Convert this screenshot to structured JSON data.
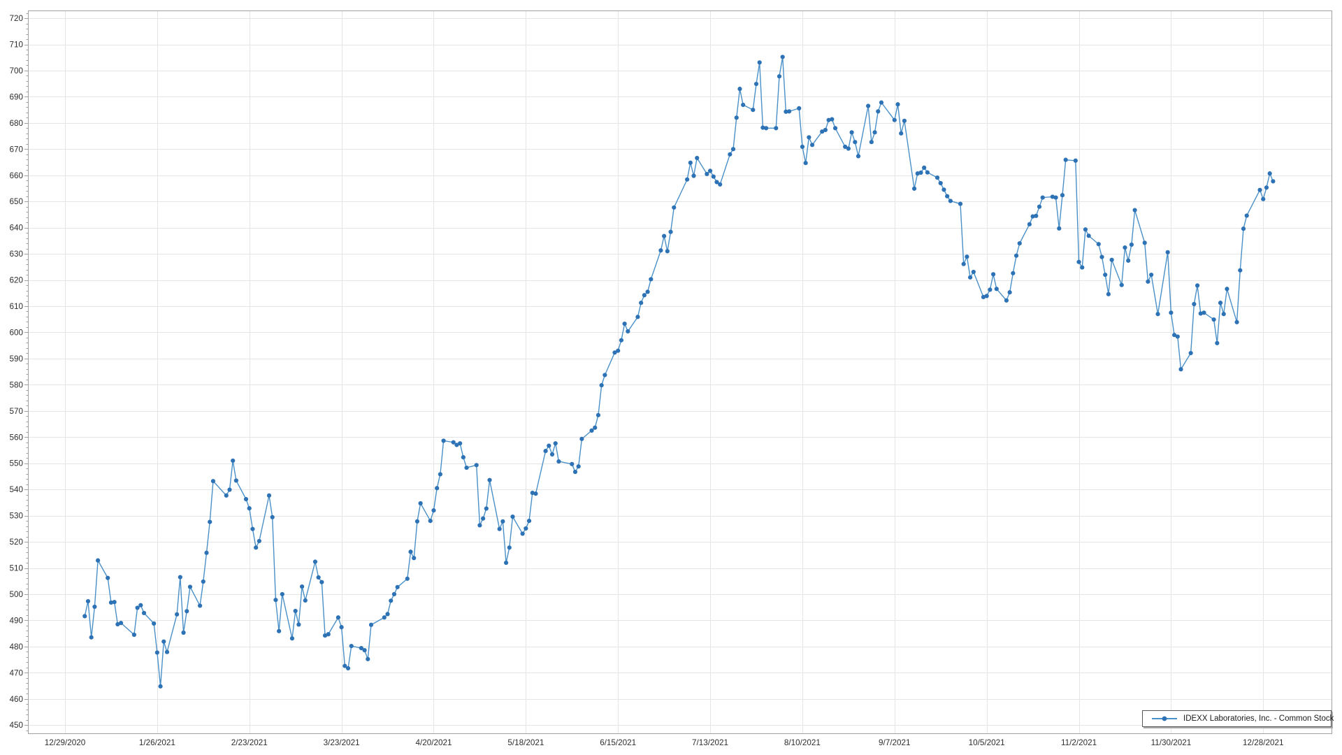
{
  "chart_data": {
    "type": "line",
    "title": "",
    "xlabel": "",
    "ylabel": "",
    "series_name": "IDEXX Laboratories, Inc. - Common Stock",
    "legend_position": "bottom-right",
    "grid": true,
    "colors": {
      "line": "#4a90c8",
      "marker": "#2d72b5",
      "gridline": "#e5e5e5",
      "axis": "#a0a0a0",
      "tick_label": "#2e2e2e",
      "background": "#ffffff"
    },
    "ylim": [
      446.8,
      723.0
    ],
    "y_tick_step": 10,
    "y_minor_tick_step": 2,
    "y_ticks": [
      450,
      460,
      470,
      480,
      490,
      500,
      510,
      520,
      530,
      540,
      550,
      560,
      570,
      580,
      590,
      600,
      610,
      620,
      630,
      640,
      650,
      660,
      670,
      680,
      690,
      700,
      710,
      720
    ],
    "x_tick_labels": [
      "12/29/2020",
      "1/26/2021",
      "2/23/2021",
      "3/23/2021",
      "4/20/2021",
      "5/18/2021",
      "6/15/2021",
      "7/13/2021",
      "8/10/2021",
      "9/7/2021",
      "10/5/2021",
      "11/2/2021",
      "11/30/2021",
      "12/28/2021"
    ],
    "x_tick_day_offsets": [
      0,
      28,
      56,
      84,
      112,
      140,
      168,
      196,
      224,
      252,
      280,
      308,
      336,
      364
    ],
    "x_day_range": [
      -11.3,
      384.8
    ],
    "dates": [
      "1/4/2021",
      "1/5/2021",
      "1/6/2021",
      "1/7/2021",
      "1/8/2021",
      "1/11/2021",
      "1/12/2021",
      "1/13/2021",
      "1/14/2021",
      "1/15/2021",
      "1/19/2021",
      "1/20/2021",
      "1/21/2021",
      "1/22/2021",
      "1/25/2021",
      "1/26/2021",
      "1/27/2021",
      "1/28/2021",
      "1/29/2021",
      "2/1/2021",
      "2/2/2021",
      "2/3/2021",
      "2/4/2021",
      "2/5/2021",
      "2/8/2021",
      "2/9/2021",
      "2/10/2021",
      "2/11/2021",
      "2/12/2021",
      "2/16/2021",
      "2/17/2021",
      "2/18/2021",
      "2/19/2021",
      "2/22/2021",
      "2/23/2021",
      "2/24/2021",
      "2/25/2021",
      "2/26/2021",
      "3/1/2021",
      "3/2/2021",
      "3/3/2021",
      "3/4/2021",
      "3/5/2021",
      "3/8/2021",
      "3/9/2021",
      "3/10/2021",
      "3/11/2021",
      "3/12/2021",
      "3/15/2021",
      "3/16/2021",
      "3/17/2021",
      "3/18/2021",
      "3/19/2021",
      "3/22/2021",
      "3/23/2021",
      "3/24/2021",
      "3/25/2021",
      "3/26/2021",
      "3/29/2021",
      "3/30/2021",
      "3/31/2021",
      "4/1/2021",
      "4/5/2021",
      "4/6/2021",
      "4/7/2021",
      "4/8/2021",
      "4/9/2021",
      "4/12/2021",
      "4/13/2021",
      "4/14/2021",
      "4/15/2021",
      "4/16/2021",
      "4/19/2021",
      "4/20/2021",
      "4/21/2021",
      "4/22/2021",
      "4/23/2021",
      "4/26/2021",
      "4/27/2021",
      "4/28/2021",
      "4/29/2021",
      "4/30/2021",
      "5/3/2021",
      "5/4/2021",
      "5/5/2021",
      "5/6/2021",
      "5/7/2021",
      "5/10/2021",
      "5/11/2021",
      "5/12/2021",
      "5/13/2021",
      "5/14/2021",
      "5/17/2021",
      "5/18/2021",
      "5/19/2021",
      "5/20/2021",
      "5/21/2021",
      "5/24/2021",
      "5/25/2021",
      "5/26/2021",
      "5/27/2021",
      "5/28/2021",
      "6/1/2021",
      "6/2/2021",
      "6/3/2021",
      "6/4/2021",
      "6/7/2021",
      "6/8/2021",
      "6/9/2021",
      "6/10/2021",
      "6/11/2021",
      "6/14/2021",
      "6/15/2021",
      "6/16/2021",
      "6/17/2021",
      "6/18/2021",
      "6/21/2021",
      "6/22/2021",
      "6/23/2021",
      "6/24/2021",
      "6/25/2021",
      "6/28/2021",
      "6/29/2021",
      "6/30/2021",
      "7/1/2021",
      "7/2/2021",
      "7/6/2021",
      "7/7/2021",
      "7/8/2021",
      "7/9/2021",
      "7/12/2021",
      "7/13/2021",
      "7/14/2021",
      "7/15/2021",
      "7/16/2021",
      "7/19/2021",
      "7/20/2021",
      "7/21/2021",
      "7/22/2021",
      "7/23/2021",
      "7/26/2021",
      "7/27/2021",
      "7/28/2021",
      "7/29/2021",
      "7/30/2021",
      "8/2/2021",
      "8/3/2021",
      "8/4/2021",
      "8/5/2021",
      "8/6/2021",
      "8/9/2021",
      "8/10/2021",
      "8/11/2021",
      "8/12/2021",
      "8/13/2021",
      "8/16/2021",
      "8/17/2021",
      "8/18/2021",
      "8/19/2021",
      "8/20/2021",
      "8/23/2021",
      "8/24/2021",
      "8/25/2021",
      "8/26/2021",
      "8/27/2021",
      "8/30/2021",
      "8/31/2021",
      "9/1/2021",
      "9/2/2021",
      "9/3/2021",
      "9/7/2021",
      "9/8/2021",
      "9/9/2021",
      "9/10/2021",
      "9/13/2021",
      "9/14/2021",
      "9/15/2021",
      "9/16/2021",
      "9/17/2021",
      "9/20/2021",
      "9/21/2021",
      "9/22/2021",
      "9/23/2021",
      "9/24/2021",
      "9/27/2021",
      "9/28/2021",
      "9/29/2021",
      "9/30/2021",
      "10/1/2021",
      "10/4/2021",
      "10/5/2021",
      "10/6/2021",
      "10/7/2021",
      "10/8/2021",
      "10/11/2021",
      "10/12/2021",
      "10/13/2021",
      "10/14/2021",
      "10/15/2021",
      "10/18/2021",
      "10/19/2021",
      "10/20/2021",
      "10/21/2021",
      "10/22/2021",
      "10/25/2021",
      "10/26/2021",
      "10/27/2021",
      "10/28/2021",
      "10/29/2021",
      "11/1/2021",
      "11/2/2021",
      "11/3/2021",
      "11/4/2021",
      "11/5/2021",
      "11/8/2021",
      "11/9/2021",
      "11/10/2021",
      "11/11/2021",
      "11/12/2021",
      "11/15/2021",
      "11/16/2021",
      "11/17/2021",
      "11/18/2021",
      "11/19/2021",
      "11/22/2021",
      "11/23/2021",
      "11/24/2021",
      "11/26/2021",
      "11/29/2021",
      "11/30/2021",
      "12/1/2021",
      "12/2/2021",
      "12/3/2021",
      "12/6/2021",
      "12/7/2021",
      "12/8/2021",
      "12/9/2021",
      "12/10/2021",
      "12/13/2021",
      "12/14/2021",
      "12/15/2021",
      "12/16/2021",
      "12/17/2021",
      "12/20/2021",
      "12/21/2021",
      "12/22/2021",
      "12/23/2021",
      "12/27/2021",
      "12/28/2021",
      "12/29/2021",
      "12/30/2021",
      "12/31/2021"
    ],
    "day_offsets": [
      6,
      7,
      8,
      9,
      10,
      13,
      14,
      15,
      16,
      17,
      21,
      22,
      23,
      24,
      27,
      28,
      29,
      30,
      31,
      34,
      35,
      36,
      37,
      38,
      41,
      42,
      43,
      44,
      45,
      49,
      50,
      51,
      52,
      55,
      56,
      57,
      58,
      59,
      62,
      63,
      64,
      65,
      66,
      69,
      70,
      71,
      72,
      73,
      76,
      77,
      78,
      79,
      80,
      83,
      84,
      85,
      86,
      87,
      90,
      91,
      92,
      93,
      97,
      98,
      99,
      100,
      101,
      104,
      105,
      106,
      107,
      108,
      111,
      112,
      113,
      114,
      115,
      118,
      119,
      120,
      121,
      122,
      125,
      126,
      127,
      128,
      129,
      132,
      133,
      134,
      135,
      136,
      139,
      140,
      141,
      142,
      143,
      146,
      147,
      148,
      149,
      150,
      154,
      155,
      156,
      157,
      160,
      161,
      162,
      163,
      164,
      167,
      168,
      169,
      170,
      171,
      174,
      175,
      176,
      177,
      178,
      181,
      182,
      183,
      184,
      185,
      189,
      190,
      191,
      192,
      195,
      196,
      197,
      198,
      199,
      202,
      203,
      204,
      205,
      206,
      209,
      210,
      211,
      212,
      213,
      216,
      217,
      218,
      219,
      220,
      223,
      224,
      225,
      226,
      227,
      230,
      231,
      232,
      233,
      234,
      237,
      238,
      239,
      240,
      241,
      244,
      245,
      246,
      247,
      248,
      252,
      253,
      254,
      255,
      258,
      259,
      260,
      261,
      262,
      265,
      266,
      267,
      268,
      269,
      272,
      273,
      274,
      275,
      276,
      279,
      280,
      281,
      282,
      283,
      286,
      287,
      288,
      289,
      290,
      293,
      294,
      295,
      296,
      297,
      300,
      301,
      302,
      303,
      304,
      307,
      308,
      309,
      310,
      311,
      314,
      315,
      316,
      317,
      318,
      321,
      322,
      323,
      324,
      325,
      328,
      329,
      330,
      332,
      335,
      336,
      337,
      338,
      339,
      342,
      343,
      344,
      345,
      346,
      349,
      350,
      351,
      352,
      353,
      356,
      357,
      358,
      359,
      363,
      364,
      365,
      366,
      367
    ],
    "values": [
      491.6,
      497.3,
      483.5,
      495.2,
      512.9,
      506.2,
      496.8,
      497.0,
      488.5,
      489.0,
      484.5,
      494.8,
      495.8,
      492.8,
      488.8,
      477.7,
      464.8,
      481.9,
      477.9,
      492.3,
      506.5,
      485.3,
      493.5,
      502.8,
      495.6,
      504.8,
      515.8,
      527.6,
      543.2,
      537.7,
      539.9,
      551.0,
      543.4,
      536.3,
      532.8,
      524.9,
      517.8,
      520.3,
      537.7,
      529.4,
      497.8,
      485.9,
      500.0,
      483.1,
      493.6,
      488.4,
      502.9,
      497.6,
      512.4,
      506.4,
      504.6,
      484.2,
      484.7,
      491.1,
      487.4,
      472.6,
      471.7,
      480.2,
      479.4,
      478.6,
      475.2,
      488.3,
      491.1,
      492.4,
      497.5,
      500.0,
      502.7,
      505.9,
      516.2,
      513.8,
      527.8,
      534.7,
      528.0,
      532.0,
      540.5,
      545.8,
      558.6,
      558.0,
      557.0,
      557.6,
      552.3,
      548.3,
      549.3,
      526.3,
      528.9,
      532.7,
      543.6,
      524.9,
      527.8,
      512.0,
      517.8,
      529.6,
      523.1,
      525.1,
      528.0,
      538.7,
      538.4,
      554.7,
      556.7,
      553.4,
      557.6,
      550.7,
      549.7,
      546.7,
      548.8,
      559.3,
      562.5,
      563.6,
      568.4,
      579.8,
      583.7,
      592.3,
      593.0,
      597.0,
      603.3,
      600.4,
      605.9,
      611.3,
      614.2,
      615.5,
      620.3,
      631.3,
      636.8,
      631.0,
      638.4,
      647.7,
      658.4,
      664.8,
      659.8,
      666.6,
      660.5,
      661.7,
      659.5,
      657.4,
      656.5,
      668.0,
      670.0,
      682.0,
      693.0,
      686.9,
      685.0,
      694.9,
      703.1,
      678.2,
      678.0,
      678.0,
      697.8,
      705.2,
      684.3,
      684.4,
      685.6,
      670.9,
      664.7,
      674.5,
      671.6,
      676.7,
      677.3,
      681.1,
      681.4,
      678.0,
      670.9,
      670.2,
      676.4,
      672.7,
      667.3,
      686.5,
      672.7,
      676.4,
      684.4,
      687.8,
      681.1,
      687.1,
      676.0,
      680.8,
      654.9,
      660.7,
      661.0,
      662.9,
      661.1,
      659.1,
      657.0,
      654.5,
      652.0,
      650.2,
      649.1,
      626.1,
      628.9,
      621.0,
      623.1,
      613.5,
      613.9,
      616.3,
      622.2,
      616.6,
      612.2,
      615.3,
      622.6,
      629.3,
      634.0,
      641.3,
      644.3,
      644.5,
      648.0,
      651.5,
      651.8,
      651.5,
      639.7,
      652.4,
      665.9,
      665.6,
      626.9,
      624.8,
      639.3,
      636.9,
      633.7,
      628.8,
      622.0,
      614.6,
      627.7,
      618.1,
      632.4,
      627.4,
      633.5,
      646.7,
      634.2,
      619.4,
      622.0,
      607.0,
      630.6,
      607.5,
      599.0,
      598.4,
      585.9,
      592.1,
      610.8,
      617.9,
      607.2,
      607.5,
      604.9,
      595.9,
      611.3,
      607.0,
      616.6,
      603.9,
      623.7,
      639.6,
      644.6,
      654.4,
      650.9,
      655.3,
      660.7,
      657.7
    ]
  }
}
